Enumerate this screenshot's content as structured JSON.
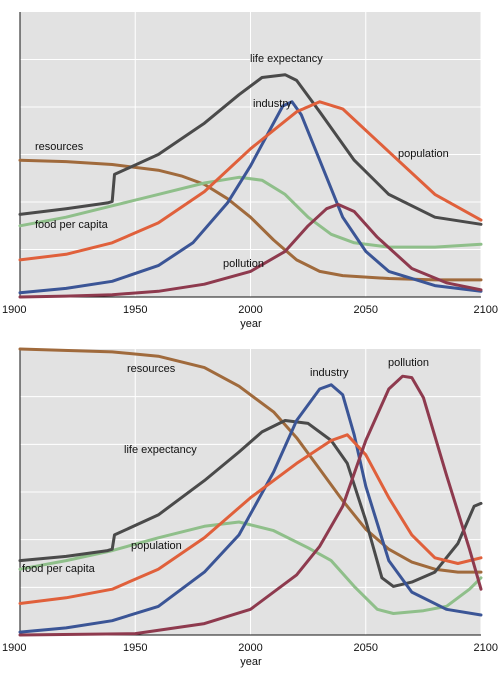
{
  "chart_data": [
    {
      "type": "line",
      "xlabel": "year",
      "xlim": [
        1900,
        2100
      ],
      "ylim": [
        0,
        100
      ],
      "grid": true,
      "x_ticks": [
        "1900",
        "1950",
        "2000",
        "2050",
        "2100"
      ],
      "series": [
        {
          "name": "resources",
          "color": "#a06a3c",
          "x": [
            1900,
            1920,
            1940,
            1960,
            1970,
            1980,
            1990,
            2000,
            2010,
            2020,
            2030,
            2040,
            2060,
            2080,
            2100
          ],
          "values": [
            48,
            47.5,
            46.5,
            44.5,
            42.5,
            39.5,
            34.5,
            28,
            20,
            13,
            9,
            7.5,
            6.5,
            6,
            6
          ]
        },
        {
          "name": "food per capita",
          "color": "#8fbf8a",
          "x": [
            1900,
            1920,
            1940,
            1960,
            1980,
            1995,
            2005,
            2015,
            2025,
            2035,
            2045,
            2060,
            2080,
            2100
          ],
          "values": [
            25,
            28,
            32,
            36,
            40,
            42,
            41,
            36,
            28,
            22,
            19,
            17.5,
            17.5,
            18.5
          ]
        },
        {
          "name": "life expectancy",
          "color": "#4a4a4a",
          "x": [
            1900,
            1920,
            1938,
            1940,
            1941,
            1960,
            1980,
            1995,
            2005,
            2015,
            2020,
            2030,
            2045,
            2060,
            2080,
            2100
          ],
          "values": [
            29,
            31,
            33,
            33.5,
            43,
            50,
            61,
            71,
            77,
            78,
            76,
            65,
            48,
            36,
            28,
            25.5
          ]
        },
        {
          "name": "industry",
          "color": "#3b5596",
          "x": [
            1900,
            1920,
            1940,
            1960,
            1975,
            1990,
            2000,
            2008,
            2014,
            2018,
            2022,
            2030,
            2040,
            2050,
            2060,
            2080,
            2100
          ],
          "values": [
            1.5,
            3,
            5.5,
            11,
            19,
            33,
            46,
            58,
            67,
            68.5,
            64,
            48,
            28,
            16,
            9,
            4,
            2
          ]
        },
        {
          "name": "population",
          "color": "#e0603b",
          "x": [
            1900,
            1920,
            1940,
            1960,
            1980,
            2000,
            2020,
            2030,
            2040,
            2060,
            2080,
            2100
          ],
          "values": [
            13,
            15,
            19,
            26,
            37,
            52,
            65,
            68.5,
            66,
            51,
            36,
            27
          ]
        },
        {
          "name": "pollution",
          "color": "#8e3a4e",
          "x": [
            1900,
            1920,
            1940,
            1960,
            1980,
            2000,
            2015,
            2025,
            2033,
            2038,
            2045,
            2055,
            2070,
            2085,
            2100
          ],
          "values": [
            0,
            0.3,
            0.8,
            2,
            4.5,
            9,
            16,
            25,
            31,
            32.5,
            30,
            21,
            10,
            5,
            2.5
          ]
        }
      ],
      "labels": [
        {
          "series": "resources",
          "text": "resources"
        },
        {
          "series": "food per capita",
          "text": "food per capita"
        },
        {
          "series": "life expectancy",
          "text": "life expectancy"
        },
        {
          "series": "industry",
          "text": "industry"
        },
        {
          "series": "population",
          "text": "population"
        },
        {
          "series": "pollution",
          "text": "pollution"
        }
      ]
    },
    {
      "type": "line",
      "xlabel": "year",
      "xlim": [
        1900,
        2100
      ],
      "ylim": [
        0,
        100
      ],
      "grid": true,
      "x_ticks": [
        "1900",
        "1950",
        "2000",
        "2050",
        "2100"
      ],
      "series": [
        {
          "name": "resources",
          "color": "#a06a3c",
          "x": [
            1900,
            1940,
            1960,
            1980,
            1995,
            2010,
            2020,
            2030,
            2040,
            2050,
            2060,
            2070,
            2080,
            2090,
            2100
          ],
          "values": [
            100,
            99,
            97.5,
            93.5,
            87,
            78,
            69,
            58,
            47,
            37,
            30,
            25.5,
            23,
            22,
            22
          ]
        },
        {
          "name": "food per capita",
          "color": "#8fbf8a",
          "x": [
            1900,
            1920,
            1940,
            1960,
            1980,
            1995,
            2010,
            2025,
            2035,
            2045,
            2055,
            2062,
            2075,
            2085,
            2095,
            2100
          ],
          "values": [
            23,
            26,
            29.5,
            34,
            38,
            39.5,
            36.5,
            30.5,
            26,
            17,
            9,
            7.5,
            8.5,
            10,
            16,
            20
          ]
        },
        {
          "name": "life expectancy",
          "color": "#4a4a4a",
          "x": [
            1900,
            1920,
            1938,
            1940,
            1941,
            1960,
            1980,
            1995,
            2005,
            2015,
            2025,
            2035,
            2042,
            2050,
            2057,
            2062,
            2070,
            2080,
            2090,
            2097,
            2100
          ],
          "values": [
            26,
            27.5,
            29.5,
            30,
            35,
            42,
            54,
            64,
            71,
            75,
            74,
            68,
            60,
            40,
            20,
            17,
            18.5,
            22,
            32,
            45,
            46
          ]
        },
        {
          "name": "industry",
          "color": "#3b5596",
          "x": [
            1900,
            1920,
            1940,
            1960,
            1980,
            1995,
            2010,
            2020,
            2030,
            2035,
            2040,
            2045,
            2050,
            2060,
            2070,
            2085,
            2100
          ],
          "values": [
            1,
            2.5,
            5,
            10,
            22,
            35,
            57,
            75,
            86,
            87.5,
            84,
            70,
            52,
            26,
            15,
            9,
            7
          ]
        },
        {
          "name": "population",
          "color": "#e0603b",
          "x": [
            1900,
            1920,
            1940,
            1960,
            1980,
            2000,
            2020,
            2035,
            2042,
            2050,
            2060,
            2070,
            2080,
            2090,
            2100
          ],
          "values": [
            11,
            13,
            16,
            23,
            34,
            48,
            60,
            68,
            70,
            63,
            48,
            35,
            27,
            25,
            27
          ]
        },
        {
          "name": "pollution",
          "color": "#8e3a4e",
          "x": [
            1900,
            1950,
            1980,
            2000,
            2020,
            2030,
            2040,
            2050,
            2060,
            2066,
            2070,
            2075,
            2085,
            2095,
            2100
          ],
          "values": [
            0,
            0.5,
            4,
            9,
            21,
            31,
            45,
            68,
            86,
            90.5,
            90,
            83,
            56,
            30,
            16
          ]
        }
      ],
      "labels": [
        {
          "series": "resources",
          "text": "resources"
        },
        {
          "series": "food per capita",
          "text": "food per capita"
        },
        {
          "series": "life expectancy",
          "text": "life expectancy"
        },
        {
          "series": "industry",
          "text": "industry"
        },
        {
          "series": "population",
          "text": "population"
        },
        {
          "series": "pollution",
          "text": "pollution"
        }
      ]
    }
  ]
}
